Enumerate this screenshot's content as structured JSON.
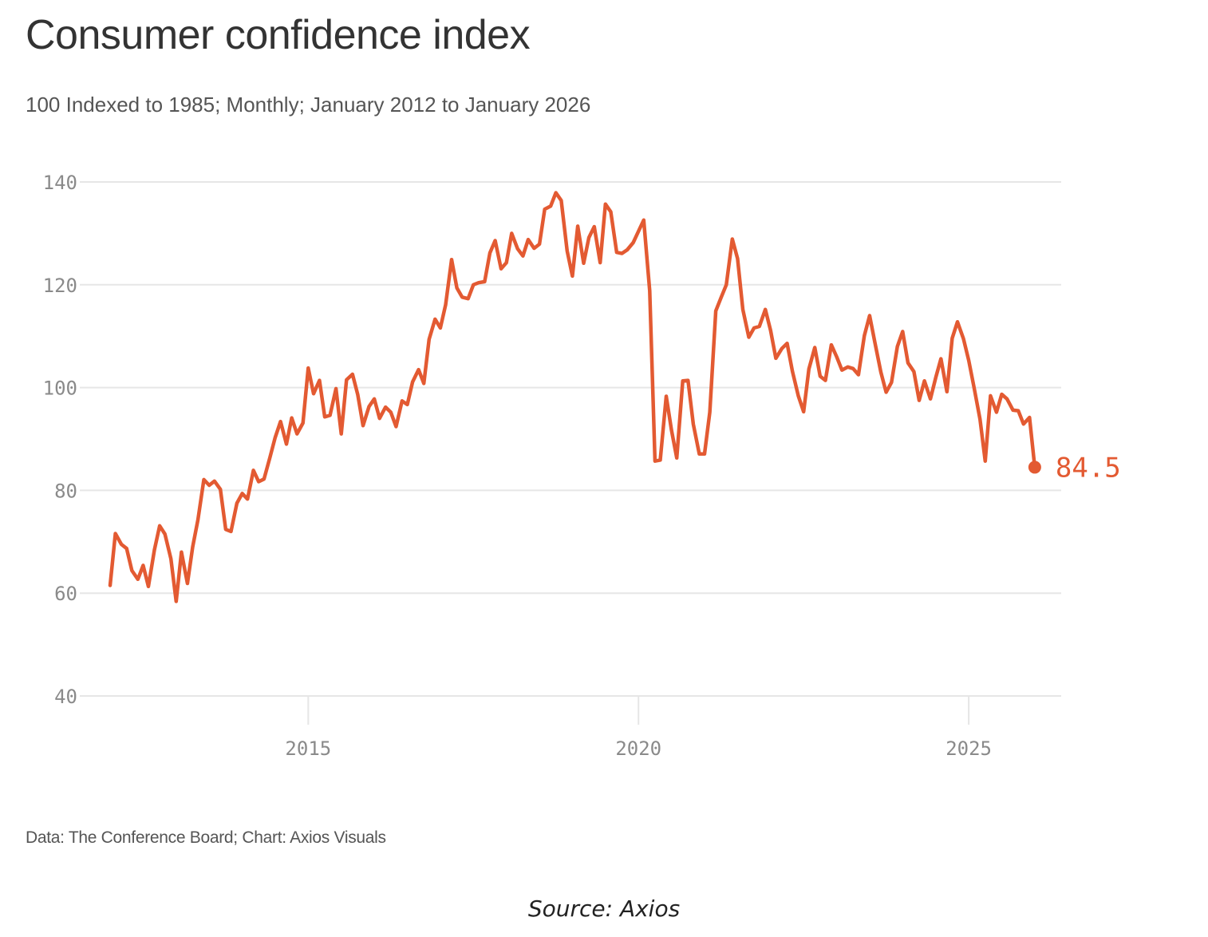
{
  "colors": {
    "line": "#e35a32",
    "grid": "#e6e6e6",
    "tick_text": "#8a8a8a",
    "title_text": "#333333",
    "subtitle_text": "#555555"
  },
  "chart_data": {
    "type": "line",
    "title": "Consumer confidence index",
    "subtitle": "100 Indexed to 1985; Monthly; January 2012 to January 2026",
    "xlabel": "",
    "ylabel": "",
    "ylim": [
      40,
      140
    ],
    "xlim": [
      2012.0,
      2026.4
    ],
    "yticks": [
      40,
      60,
      80,
      100,
      120,
      140
    ],
    "xticks": [
      2015,
      2020,
      2025
    ],
    "grid": true,
    "legend": "none",
    "end_label": "84.5",
    "series": [
      {
        "name": "",
        "x": [
          2012.0,
          2012.08,
          2012.17,
          2012.25,
          2012.33,
          2012.42,
          2012.5,
          2012.58,
          2012.67,
          2012.75,
          2012.83,
          2012.92,
          2013.0,
          2013.08,
          2013.17,
          2013.25,
          2013.33,
          2013.42,
          2013.5,
          2013.58,
          2013.67,
          2013.75,
          2013.83,
          2013.92,
          2014.0,
          2014.08,
          2014.17,
          2014.25,
          2014.33,
          2014.42,
          2014.5,
          2014.58,
          2014.67,
          2014.75,
          2014.83,
          2014.92,
          2015.0,
          2015.08,
          2015.17,
          2015.25,
          2015.33,
          2015.42,
          2015.5,
          2015.58,
          2015.67,
          2015.75,
          2015.83,
          2015.92,
          2016.0,
          2016.08,
          2016.17,
          2016.25,
          2016.33,
          2016.42,
          2016.5,
          2016.58,
          2016.67,
          2016.75,
          2016.83,
          2016.92,
          2017.0,
          2017.08,
          2017.17,
          2017.25,
          2017.33,
          2017.42,
          2017.5,
          2017.58,
          2017.67,
          2017.75,
          2017.83,
          2017.92,
          2018.0,
          2018.08,
          2018.17,
          2018.25,
          2018.33,
          2018.42,
          2018.5,
          2018.58,
          2018.67,
          2018.75,
          2018.83,
          2018.92,
          2019.0,
          2019.08,
          2019.17,
          2019.25,
          2019.33,
          2019.42,
          2019.5,
          2019.58,
          2019.67,
          2019.75,
          2019.83,
          2019.92,
          2020.0,
          2020.08,
          2020.17,
          2020.25,
          2020.33,
          2020.42,
          2020.5,
          2020.58,
          2020.67,
          2020.75,
          2020.83,
          2020.92,
          2021.0,
          2021.08,
          2021.17,
          2021.25,
          2021.33,
          2021.42,
          2021.5,
          2021.58,
          2021.67,
          2021.75,
          2021.83,
          2021.92,
          2022.0,
          2022.08,
          2022.17,
          2022.25,
          2022.33,
          2022.42,
          2022.5,
          2022.58,
          2022.67,
          2022.75,
          2022.83,
          2022.92,
          2023.0,
          2023.08,
          2023.17,
          2023.25,
          2023.33,
          2023.42,
          2023.5,
          2023.58,
          2023.67,
          2023.75,
          2023.83,
          2023.92,
          2024.0,
          2024.08,
          2024.17,
          2024.25,
          2024.33,
          2024.42,
          2024.5,
          2024.58,
          2024.67,
          2024.75,
          2024.83,
          2024.92,
          2025.0,
          2025.08,
          2025.17,
          2025.25,
          2025.33,
          2025.42,
          2025.5,
          2025.58,
          2025.67,
          2025.75,
          2025.83,
          2025.92,
          2026.0
        ],
        "values": [
          61.5,
          71.6,
          69.5,
          68.7,
          64.4,
          62.7,
          65.4,
          61.3,
          68.4,
          73.1,
          71.5,
          66.7,
          58.4,
          68.0,
          61.9,
          69.0,
          74.3,
          82.1,
          81.0,
          81.8,
          80.2,
          72.4,
          72.0,
          77.5,
          79.4,
          78.3,
          83.9,
          81.7,
          82.2,
          86.4,
          90.3,
          93.4,
          89.0,
          94.1,
          91.0,
          93.1,
          103.8,
          98.8,
          101.4,
          94.3,
          94.6,
          99.8,
          91.0,
          101.5,
          102.6,
          98.6,
          92.6,
          96.3,
          97.8,
          94.0,
          96.2,
          95.2,
          92.4,
          97.4,
          96.7,
          101.1,
          103.5,
          100.8,
          109.4,
          113.3,
          111.6,
          116.1,
          124.9,
          119.4,
          117.6,
          117.3,
          120.0,
          120.4,
          120.6,
          126.2,
          128.6,
          123.1,
          124.3,
          130.0,
          127.0,
          125.6,
          128.8,
          127.1,
          127.9,
          134.7,
          135.3,
          137.9,
          136.4,
          126.6,
          121.7,
          131.4,
          124.2,
          129.2,
          131.3,
          124.3,
          135.7,
          134.2,
          126.3,
          126.1,
          126.8,
          128.2,
          130.4,
          132.6,
          118.8,
          85.7,
          85.9,
          98.3,
          91.7,
          86.3,
          101.3,
          101.4,
          92.9,
          87.1,
          87.1,
          95.2,
          114.9,
          117.5,
          120.0,
          128.9,
          125.1,
          115.2,
          109.8,
          111.6,
          111.9,
          115.2,
          111.1,
          105.7,
          107.6,
          108.6,
          103.2,
          98.4,
          95.3,
          103.6,
          107.8,
          102.2,
          101.4,
          108.3,
          106.0,
          103.4,
          104.0,
          103.7,
          102.5,
          110.1,
          114.0,
          108.7,
          103.0,
          99.1,
          101.0,
          108.0,
          110.9,
          104.8,
          103.1,
          97.5,
          101.3,
          97.8,
          101.9,
          105.6,
          99.2,
          109.6,
          112.8,
          109.5,
          105.3,
          100.1,
          93.9,
          85.7,
          98.4,
          95.2,
          98.7,
          97.8,
          95.6,
          95.5,
          92.9,
          94.2,
          84.5
        ]
      }
    ]
  },
  "credit": "Data: The Conference Board; Chart: Axios Visuals",
  "source_caption": "Source: Axios"
}
